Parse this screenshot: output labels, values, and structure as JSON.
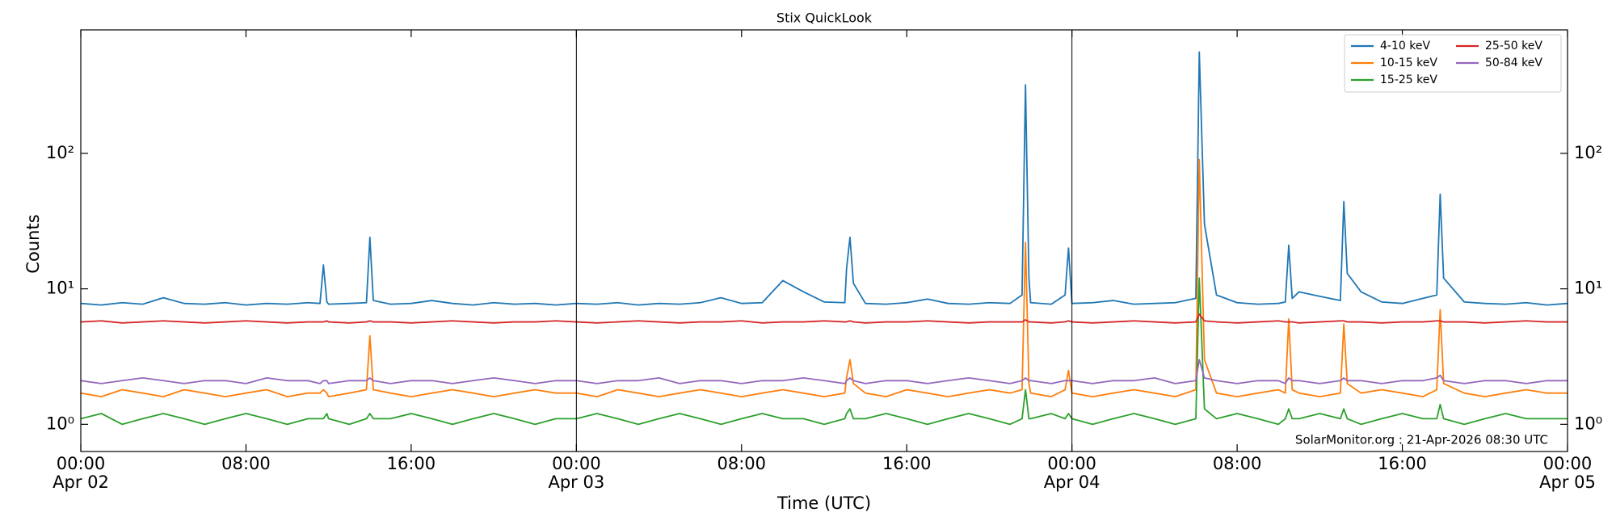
{
  "chart_data": {
    "type": "line",
    "title": "Stix QuickLook",
    "xlabel": "Time (UTC)",
    "ylabel": "Counts",
    "annotation": "SolarMonitor.org : 21-Apr-2026 08:30 UTC",
    "log_y": true,
    "legend_loc": "upper right",
    "legend_ncol": 2,
    "xlim": [
      "Apr 02 00:00",
      "Apr 05 00:00"
    ],
    "ylim": [
      0.63,
      815
    ],
    "yticks": [
      {
        "value": 1,
        "label": "10⁰"
      },
      {
        "value": 10,
        "label": "10¹"
      },
      {
        "value": 100,
        "label": "10²"
      }
    ],
    "xticks": [
      {
        "value": "Apr 02 00:00",
        "label": [
          "00:00",
          "Apr 02"
        ]
      },
      {
        "value": "Apr 02 08:00",
        "label": [
          "08:00"
        ]
      },
      {
        "value": "Apr 02 16:00",
        "label": [
          "16:00"
        ]
      },
      {
        "value": "Apr 03 00:00",
        "label": [
          "00:00",
          "Apr 03"
        ]
      },
      {
        "value": "Apr 03 08:00",
        "label": [
          "08:00"
        ]
      },
      {
        "value": "Apr 03 16:00",
        "label": [
          "16:00"
        ]
      },
      {
        "value": "Apr 04 00:00",
        "label": [
          "00:00",
          "Apr 04"
        ]
      },
      {
        "value": "Apr 04 08:00",
        "label": [
          "08:00"
        ]
      },
      {
        "value": "Apr 04 16:00",
        "label": [
          "16:00"
        ]
      },
      {
        "value": "Apr 05 00:00",
        "label": [
          "00:00",
          "Apr 05"
        ]
      }
    ],
    "vlines": [
      "Apr 03 00:00",
      "Apr 04 00:00"
    ],
    "x": [
      "Apr 02 00:00",
      "Apr 02 01:00",
      "Apr 02 02:00",
      "Apr 02 03:00",
      "Apr 02 04:00",
      "Apr 02 05:00",
      "Apr 02 06:00",
      "Apr 02 07:00",
      "Apr 02 08:00",
      "Apr 02 09:00",
      "Apr 02 10:00",
      "Apr 02 11:00",
      "Apr 02 11:35",
      "Apr 02 11:45",
      "Apr 02 11:55",
      "Apr 02 12:00",
      "Apr 02 13:00",
      "Apr 02 13:50",
      "Apr 02 14:00",
      "Apr 02 14:10",
      "Apr 02 15:00",
      "Apr 02 16:00",
      "Apr 02 17:00",
      "Apr 02 18:00",
      "Apr 02 19:00",
      "Apr 02 20:00",
      "Apr 02 21:00",
      "Apr 02 22:00",
      "Apr 02 23:00",
      "Apr 03 00:00",
      "Apr 03 01:00",
      "Apr 03 02:00",
      "Apr 03 03:00",
      "Apr 03 04:00",
      "Apr 03 05:00",
      "Apr 03 06:00",
      "Apr 03 07:00",
      "Apr 03 08:00",
      "Apr 03 09:00",
      "Apr 03 10:00",
      "Apr 03 11:00",
      "Apr 03 12:00",
      "Apr 03 13:00",
      "Apr 03 13:05",
      "Apr 03 13:15",
      "Apr 03 13:25",
      "Apr 03 14:00",
      "Apr 03 15:00",
      "Apr 03 16:00",
      "Apr 03 17:00",
      "Apr 03 18:00",
      "Apr 03 19:00",
      "Apr 03 20:00",
      "Apr 03 21:00",
      "Apr 03 21:35",
      "Apr 03 21:45",
      "Apr 03 21:55",
      "Apr 03 22:00",
      "Apr 03 23:00",
      "Apr 03 23:40",
      "Apr 03 23:50",
      "Apr 04 00:00",
      "Apr 04 01:00",
      "Apr 04 02:00",
      "Apr 04 03:00",
      "Apr 04 04:00",
      "Apr 04 05:00",
      "Apr 04 06:00",
      "Apr 04 06:10",
      "Apr 04 06:25",
      "Apr 04 07:00",
      "Apr 04 08:00",
      "Apr 04 09:00",
      "Apr 04 10:00",
      "Apr 04 10:20",
      "Apr 04 10:30",
      "Apr 04 10:40",
      "Apr 04 11:00",
      "Apr 04 12:00",
      "Apr 04 13:00",
      "Apr 04 13:10",
      "Apr 04 13:20",
      "Apr 04 14:00",
      "Apr 04 15:00",
      "Apr 04 16:00",
      "Apr 04 17:00",
      "Apr 04 17:40",
      "Apr 04 17:50",
      "Apr 04 18:00",
      "Apr 04 19:00",
      "Apr 04 20:00",
      "Apr 04 21:00",
      "Apr 04 22:00",
      "Apr 04 23:00",
      "Apr 05 00:00"
    ],
    "series": [
      {
        "name": "4-10 keV",
        "color": "#1f77b4",
        "values": [
          7.8,
          7.6,
          7.9,
          7.7,
          8.6,
          7.8,
          7.7,
          7.9,
          7.6,
          7.8,
          7.7,
          7.9,
          7.8,
          15,
          8.0,
          7.7,
          7.8,
          7.9,
          24,
          8.2,
          7.7,
          7.8,
          8.2,
          7.8,
          7.6,
          7.9,
          7.7,
          7.8,
          7.6,
          7.8,
          7.7,
          7.9,
          7.6,
          7.8,
          7.7,
          7.9,
          8.6,
          7.8,
          7.9,
          11.5,
          9.5,
          8.0,
          7.9,
          14,
          24,
          11,
          7.8,
          7.7,
          7.9,
          8.4,
          7.8,
          7.7,
          7.9,
          7.8,
          9.0,
          320,
          12,
          7.9,
          7.7,
          9.0,
          20,
          7.8,
          7.9,
          8.2,
          7.7,
          7.8,
          7.9,
          8.5,
          560,
          30,
          9.0,
          7.9,
          7.7,
          7.8,
          8.0,
          21,
          8.5,
          9.5,
          8.8,
          8.2,
          44,
          13,
          9.5,
          8.0,
          7.8,
          8.5,
          9.0,
          50,
          12,
          8.0,
          7.8,
          7.7,
          7.9,
          7.6,
          7.8
        ]
      },
      {
        "name": "10-15 keV",
        "color": "#ff7f0e",
        "values": [
          1.7,
          1.6,
          1.8,
          1.7,
          1.6,
          1.8,
          1.7,
          1.6,
          1.7,
          1.8,
          1.6,
          1.7,
          1.7,
          1.8,
          1.7,
          1.6,
          1.7,
          1.8,
          4.5,
          1.8,
          1.7,
          1.6,
          1.7,
          1.8,
          1.7,
          1.6,
          1.7,
          1.8,
          1.7,
          1.7,
          1.6,
          1.8,
          1.7,
          1.6,
          1.7,
          1.8,
          1.7,
          1.6,
          1.7,
          1.8,
          1.7,
          1.6,
          1.7,
          2.2,
          3.0,
          2.0,
          1.7,
          1.6,
          1.8,
          1.7,
          1.6,
          1.7,
          1.8,
          1.7,
          1.8,
          22,
          2.0,
          1.7,
          1.6,
          1.8,
          2.5,
          1.7,
          1.6,
          1.7,
          1.8,
          1.7,
          1.6,
          1.8,
          90,
          3.0,
          1.7,
          1.6,
          1.7,
          1.8,
          1.7,
          6.0,
          1.8,
          1.7,
          1.6,
          1.7,
          5.5,
          2.0,
          1.7,
          1.8,
          1.7,
          1.6,
          1.8,
          7.0,
          2.0,
          1.7,
          1.6,
          1.7,
          1.8,
          1.7,
          1.7
        ]
      },
      {
        "name": "15-25 keV",
        "color": "#2ca02c",
        "values": [
          1.1,
          1.2,
          1.0,
          1.1,
          1.2,
          1.1,
          1.0,
          1.1,
          1.2,
          1.1,
          1.0,
          1.1,
          1.1,
          1.1,
          1.2,
          1.1,
          1.0,
          1.1,
          1.2,
          1.1,
          1.1,
          1.2,
          1.1,
          1.0,
          1.1,
          1.2,
          1.1,
          1.0,
          1.1,
          1.1,
          1.2,
          1.1,
          1.0,
          1.1,
          1.2,
          1.1,
          1.0,
          1.1,
          1.2,
          1.1,
          1.1,
          1.0,
          1.1,
          1.2,
          1.3,
          1.1,
          1.1,
          1.2,
          1.1,
          1.0,
          1.1,
          1.2,
          1.1,
          1.0,
          1.1,
          1.8,
          1.1,
          1.1,
          1.2,
          1.1,
          1.2,
          1.1,
          1.0,
          1.1,
          1.2,
          1.1,
          1.0,
          1.1,
          12,
          1.3,
          1.1,
          1.2,
          1.1,
          1.0,
          1.1,
          1.3,
          1.1,
          1.1,
          1.2,
          1.1,
          1.3,
          1.1,
          1.0,
          1.1,
          1.2,
          1.1,
          1.1,
          1.4,
          1.1,
          1.0,
          1.1,
          1.2,
          1.1,
          1.1,
          1.1
        ]
      },
      {
        "name": "25-50 keV",
        "color": "#d62728",
        "values": [
          5.7,
          5.8,
          5.6,
          5.7,
          5.8,
          5.7,
          5.6,
          5.7,
          5.8,
          5.7,
          5.6,
          5.7,
          5.7,
          5.7,
          5.8,
          5.7,
          5.6,
          5.7,
          5.8,
          5.7,
          5.7,
          5.6,
          5.7,
          5.8,
          5.7,
          5.6,
          5.7,
          5.7,
          5.8,
          5.7,
          5.6,
          5.7,
          5.8,
          5.7,
          5.6,
          5.7,
          5.7,
          5.8,
          5.6,
          5.7,
          5.7,
          5.8,
          5.7,
          5.7,
          5.8,
          5.7,
          5.6,
          5.7,
          5.7,
          5.8,
          5.7,
          5.6,
          5.7,
          5.7,
          5.7,
          5.9,
          5.7,
          5.7,
          5.6,
          5.7,
          5.8,
          5.7,
          5.6,
          5.7,
          5.8,
          5.7,
          5.6,
          5.7,
          6.5,
          5.8,
          5.7,
          5.6,
          5.7,
          5.8,
          5.7,
          5.7,
          5.7,
          5.6,
          5.7,
          5.8,
          5.8,
          5.7,
          5.7,
          5.6,
          5.7,
          5.7,
          5.8,
          5.8,
          5.7,
          5.7,
          5.6,
          5.7,
          5.8,
          5.7,
          5.7
        ]
      },
      {
        "name": "50-84 keV",
        "color": "#9467bd",
        "values": [
          2.1,
          2.0,
          2.1,
          2.2,
          2.1,
          2.0,
          2.1,
          2.1,
          2.0,
          2.2,
          2.1,
          2.1,
          2.0,
          2.1,
          2.1,
          2.0,
          2.1,
          2.1,
          2.2,
          2.1,
          2.0,
          2.1,
          2.1,
          2.0,
          2.1,
          2.2,
          2.1,
          2.0,
          2.1,
          2.1,
          2.0,
          2.1,
          2.1,
          2.2,
          2.0,
          2.1,
          2.1,
          2.0,
          2.1,
          2.1,
          2.2,
          2.1,
          2.0,
          2.1,
          2.2,
          2.1,
          2.0,
          2.1,
          2.1,
          2.0,
          2.1,
          2.2,
          2.1,
          2.0,
          2.1,
          2.2,
          2.1,
          2.1,
          2.0,
          2.1,
          2.1,
          2.1,
          2.0,
          2.1,
          2.1,
          2.2,
          2.0,
          2.1,
          3.0,
          2.2,
          2.1,
          2.0,
          2.1,
          2.1,
          2.0,
          2.2,
          2.1,
          2.1,
          2.0,
          2.1,
          2.2,
          2.1,
          2.1,
          2.0,
          2.1,
          2.1,
          2.2,
          2.3,
          2.1,
          2.0,
          2.1,
          2.1,
          2.0,
          2.1,
          2.1
        ]
      }
    ]
  }
}
